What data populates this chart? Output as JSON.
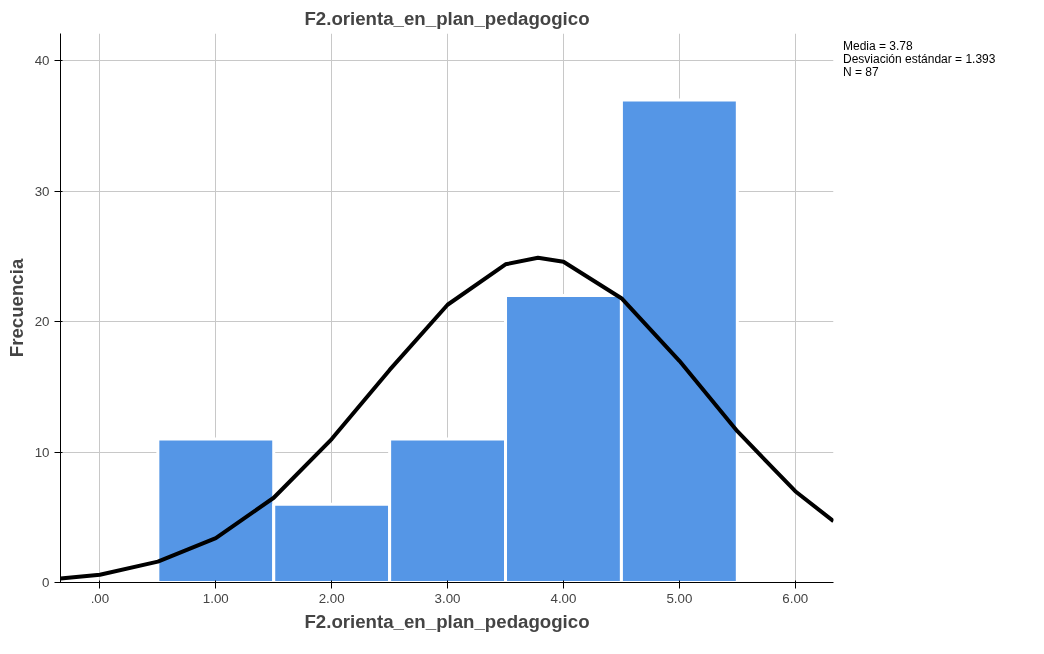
{
  "chart_data": {
    "type": "histogram",
    "title": "F2.orienta_en_plan_pedagogico",
    "xlabel": "F2.orienta_en_plan_pedagogico",
    "ylabel": "Frecuencia",
    "bins": [
      0.5,
      1.5,
      2.5,
      3.5,
      4.5,
      5.5
    ],
    "values": [
      11,
      6,
      11,
      22,
      37
    ],
    "color": "#5596e6",
    "series": [
      {
        "type": "line",
        "color": "#000000",
        "x": [
          -0.34,
          0,
          0.5,
          1,
          1.5,
          2,
          2.5,
          3,
          3.5,
          3.78,
          4,
          4.5,
          5,
          5.5,
          6,
          6.33
        ],
        "values": [
          0.3,
          0.6,
          1.6,
          3.4,
          6.5,
          11.0,
          16.3,
          21.3,
          24.4,
          24.9,
          24.6,
          21.8,
          17.0,
          11.6,
          7.0,
          4.7
        ]
      }
    ],
    "xlim": [
      -0.34,
      6.33
    ],
    "ylim": [
      0,
      42.1
    ],
    "xticks": [
      {
        "value": 0,
        "label": ".00"
      },
      {
        "value": 1,
        "label": "1.00"
      },
      {
        "value": 2,
        "label": "2.00"
      },
      {
        "value": 3,
        "label": "3.00"
      },
      {
        "value": 4,
        "label": "4.00"
      },
      {
        "value": 5,
        "label": "5.00"
      },
      {
        "value": 6,
        "label": "6.00"
      }
    ],
    "yticks": [
      0,
      10,
      20,
      30,
      40
    ],
    "grid": true,
    "annotations": [
      "Media = 3.78",
      "Desviación estándar = 1.393",
      "N = 87"
    ]
  }
}
